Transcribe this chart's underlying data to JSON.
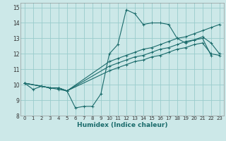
{
  "xlabel": "Humidex (Indice chaleur)",
  "bg_color": "#cce8e8",
  "grid_color": "#99cccc",
  "line_color": "#1a6b6b",
  "xlim": [
    -0.5,
    23.5
  ],
  "ylim": [
    8,
    15.3
  ],
  "xticks": [
    0,
    1,
    2,
    3,
    4,
    5,
    6,
    7,
    8,
    9,
    10,
    11,
    12,
    13,
    14,
    15,
    16,
    17,
    18,
    19,
    20,
    21,
    22,
    23
  ],
  "yticks": [
    8,
    9,
    10,
    11,
    12,
    13,
    14,
    15
  ],
  "line1_x": [
    0,
    1,
    2,
    3,
    4,
    5,
    6,
    7,
    8,
    9,
    10,
    11,
    12,
    13,
    14,
    15,
    16,
    17,
    18,
    19,
    20,
    21,
    22
  ],
  "line1_y": [
    10.1,
    9.7,
    9.9,
    9.8,
    9.7,
    9.6,
    8.5,
    8.6,
    8.6,
    9.4,
    12.0,
    12.6,
    14.85,
    14.6,
    13.9,
    14.0,
    14.0,
    13.9,
    13.0,
    12.7,
    12.9,
    13.0,
    11.9
  ],
  "line2_x": [
    0,
    2,
    3,
    4,
    5,
    10,
    11,
    12,
    13,
    14,
    15,
    16,
    17,
    18,
    19,
    20,
    21,
    22,
    23
  ],
  "line2_y": [
    10.1,
    9.9,
    9.8,
    9.8,
    9.6,
    11.5,
    11.7,
    11.9,
    12.1,
    12.3,
    12.4,
    12.6,
    12.8,
    13.0,
    13.1,
    13.3,
    13.5,
    13.7,
    13.9
  ],
  "line3_x": [
    0,
    2,
    3,
    4,
    5,
    10,
    11,
    12,
    13,
    14,
    15,
    16,
    17,
    18,
    19,
    20,
    21,
    22,
    23
  ],
  "line3_y": [
    10.1,
    9.9,
    9.8,
    9.8,
    9.6,
    10.9,
    11.1,
    11.3,
    11.5,
    11.6,
    11.8,
    11.9,
    12.1,
    12.3,
    12.4,
    12.6,
    12.7,
    12.0,
    11.9
  ],
  "line4_x": [
    0,
    2,
    3,
    4,
    5,
    10,
    11,
    12,
    13,
    14,
    15,
    16,
    17,
    18,
    19,
    20,
    21,
    22,
    23
  ],
  "line4_y": [
    10.1,
    9.9,
    9.8,
    9.8,
    9.6,
    11.2,
    11.4,
    11.6,
    11.8,
    11.9,
    12.1,
    12.3,
    12.4,
    12.6,
    12.8,
    12.9,
    13.1,
    12.7,
    12.0
  ]
}
